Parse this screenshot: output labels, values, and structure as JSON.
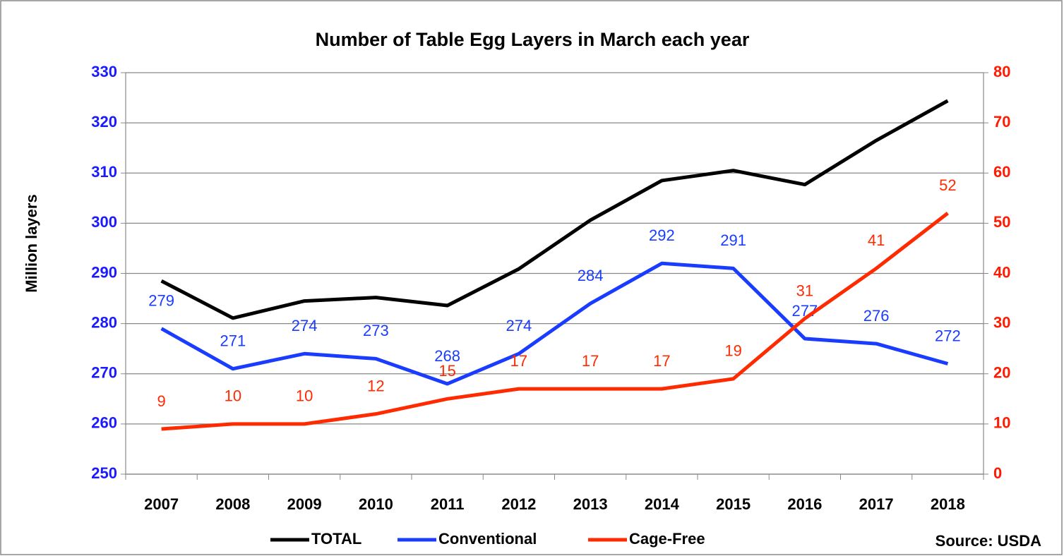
{
  "chart_data": {
    "type": "line",
    "title": "Number of Table Egg Layers in March each year",
    "y_label": "Million layers",
    "source": "Source: USDA",
    "categories": [
      "2007",
      "2008",
      "2009",
      "2010",
      "2011",
      "2012",
      "2013",
      "2014",
      "2015",
      "2016",
      "2017",
      "2018"
    ],
    "series": [
      {
        "name": "TOTAL",
        "color": "#000000",
        "axis": "y",
        "values": [
          288.5,
          281.1,
          284.5,
          285.2,
          283.6,
          290.9,
          300.6,
          308.5,
          310.5,
          307.7,
          316.5,
          324.4
        ]
      },
      {
        "name": "Conventional",
        "color": "#1a3cff",
        "axis": "y",
        "values": [
          279,
          271,
          274,
          273,
          268,
          274,
          284,
          292,
          291,
          277,
          276,
          272
        ],
        "labels": true
      },
      {
        "name": "Cage-Free",
        "color": "#ff2a00",
        "axis": "y2",
        "values": [
          9,
          10,
          10,
          12,
          15,
          17,
          17,
          17,
          19,
          31,
          41,
          52
        ],
        "labels": true
      }
    ],
    "ylim": [
      250,
      330
    ],
    "yticks": [
      250,
      260,
      270,
      280,
      290,
      300,
      310,
      320,
      330
    ],
    "y2lim": [
      0,
      80
    ],
    "y2ticks": [
      0,
      10,
      20,
      30,
      40,
      50,
      60,
      70,
      80
    ],
    "grid": true
  }
}
